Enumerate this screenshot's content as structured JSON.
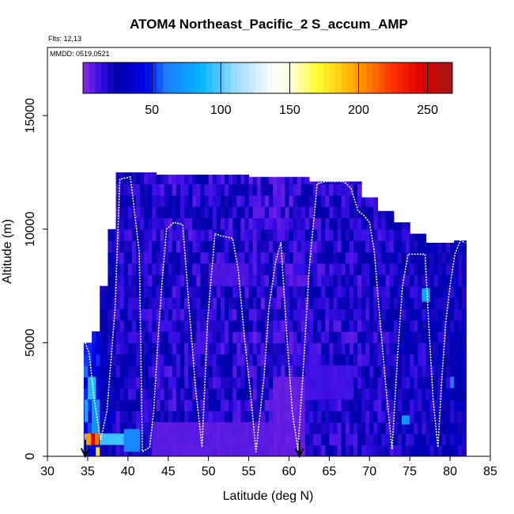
{
  "chart_data": {
    "type": "heatmap",
    "title": "ATOM4 Northeast_Pacific_2 S_accum_AMP",
    "subtitle_flights": "Flts: 12,13",
    "subtitle_dates": "MMDD: 0519,0521",
    "xlabel": "Latitude (deg N)",
    "ylabel": "Altitude (m)",
    "xlim": [
      30,
      85
    ],
    "ylim": [
      0,
      18000
    ],
    "x_ticks": [
      "30",
      "35",
      "40",
      "45",
      "50",
      "55",
      "60",
      "65",
      "70",
      "75",
      "80",
      "85"
    ],
    "y_ticks": [
      "0",
      "5000",
      "10000",
      "15000"
    ],
    "colorbar": {
      "range": [
        0,
        268
      ],
      "tick_labels": [
        "50",
        "100",
        "150",
        "200",
        "250"
      ],
      "tick_values": [
        50,
        100,
        150,
        200,
        250
      ],
      "stops": [
        {
          "value": 0,
          "color": "#8a2be2"
        },
        {
          "value": 12,
          "color": "#3a0ee8"
        },
        {
          "value": 25,
          "color": "#0000a8"
        },
        {
          "value": 45,
          "color": "#0000e8"
        },
        {
          "value": 60,
          "color": "#1e7bff"
        },
        {
          "value": 85,
          "color": "#00b4ff"
        },
        {
          "value": 110,
          "color": "#9ad9ff"
        },
        {
          "value": 135,
          "color": "#f5fbff"
        },
        {
          "value": 150,
          "color": "#fffde0"
        },
        {
          "value": 170,
          "color": "#ffff30"
        },
        {
          "value": 195,
          "color": "#ffb000"
        },
        {
          "value": 225,
          "color": "#ff3000"
        },
        {
          "value": 245,
          "color": "#e00000"
        },
        {
          "value": 268,
          "color": "#a01818"
        }
      ]
    },
    "curtain_columns": [
      {
        "lat": [
          34.5,
          35.5
        ],
        "top": 5000,
        "base_value": 50
      },
      {
        "lat": [
          35.5,
          36.5
        ],
        "top": 5500,
        "base_value": 45
      },
      {
        "lat": [
          36.5,
          37.5
        ],
        "top": 7500,
        "base_value": 30
      },
      {
        "lat": [
          37.5,
          38.5
        ],
        "top": 10000,
        "base_value": 25
      },
      {
        "lat": [
          38.5,
          43.5
        ],
        "top": 12500,
        "base_value": 20
      },
      {
        "lat": [
          43.5,
          55
        ],
        "top": 12400,
        "base_value": 18
      },
      {
        "lat": [
          55,
          62.5
        ],
        "top": 12300,
        "base_value": 16
      },
      {
        "lat": [
          62.5,
          69
        ],
        "top": 12100,
        "base_value": 18
      },
      {
        "lat": [
          69,
          71
        ],
        "top": 11400,
        "base_value": 20
      },
      {
        "lat": [
          71,
          73
        ],
        "top": 10800,
        "base_value": 20
      },
      {
        "lat": [
          73,
          75
        ],
        "top": 10300,
        "base_value": 22
      },
      {
        "lat": [
          75,
          77
        ],
        "top": 9800,
        "base_value": 22
      },
      {
        "lat": [
          77,
          80.5
        ],
        "top": 9400,
        "base_value": 24
      },
      {
        "lat": [
          80.5,
          82
        ],
        "top": 9500,
        "base_value": 26
      }
    ],
    "highlight_cells": [
      {
        "lat": [
          34.6,
          35.0
        ],
        "alt": [
          1500,
          2500
        ],
        "value": 85
      },
      {
        "lat": [
          35.0,
          36.0
        ],
        "alt": [
          2500,
          3500
        ],
        "value": 90
      },
      {
        "lat": [
          35.5,
          36.5
        ],
        "alt": [
          1000,
          2500
        ],
        "value": 70
      },
      {
        "lat": [
          34.6,
          35.4
        ],
        "alt": [
          500,
          1000
        ],
        "value": 200
      },
      {
        "lat": [
          35.4,
          35.9
        ],
        "alt": [
          500,
          1000
        ],
        "value": 245
      },
      {
        "lat": [
          35.9,
          36.4
        ],
        "alt": [
          500,
          1000
        ],
        "value": 210
      },
      {
        "lat": [
          36.0,
          36.5
        ],
        "alt": [
          0,
          400
        ],
        "value": 180
      },
      {
        "lat": [
          36.5,
          39.5
        ],
        "alt": [
          500,
          1000
        ],
        "value": 95
      },
      {
        "lat": [
          39.5,
          41.5
        ],
        "alt": [
          200,
          1200
        ],
        "value": 65
      },
      {
        "lat": [
          76.5,
          77.5
        ],
        "alt": [
          6800,
          7400
        ],
        "value": 80
      },
      {
        "lat": [
          74.0,
          75.0
        ],
        "alt": [
          1400,
          1800
        ],
        "value": 70
      },
      {
        "lat": [
          80.0,
          80.5
        ],
        "alt": [
          3000,
          3500
        ],
        "value": 60
      }
    ],
    "light_cells": [
      {
        "lat": [
          43.0,
          58.0
        ],
        "alt": [
          0,
          1500
        ],
        "value": 6
      },
      {
        "lat": [
          58.0,
          62.0
        ],
        "alt": [
          0,
          3500
        ],
        "value": 4
      },
      {
        "lat": [
          50.0,
          55.0
        ],
        "alt": [
          7500,
          8500
        ],
        "value": 8
      },
      {
        "lat": [
          62.0,
          68.0
        ],
        "alt": [
          2500,
          4000
        ],
        "value": 10
      }
    ],
    "flight_track": {
      "lat": [
        34.7,
        35.2,
        35.8,
        36.6,
        37.4,
        38.4,
        39.0,
        40.3,
        40.9,
        41.4,
        41.8,
        42.7,
        43.2,
        43.8,
        44.3,
        44.8,
        45.7,
        46.8,
        47.6,
        48.4,
        49.2,
        49.9,
        50.8,
        51.6,
        53.0,
        53.7,
        54.4,
        55.3,
        55.9,
        56.9,
        57.5,
        58.3,
        59.0,
        59.6,
        60.4,
        61.1,
        61.8,
        62.5,
        63.5,
        64.6,
        66.8,
        67.7,
        68.6,
        69.3,
        70.0,
        70.6,
        71.3,
        72.1,
        72.8,
        73.5,
        74.1,
        74.8,
        75.7,
        76.9,
        77.3,
        77.9,
        78.5,
        79.0,
        79.5,
        80.0,
        80.6,
        81.3,
        81.9
      ],
      "alt": [
        5000,
        4500,
        2500,
        700,
        2000,
        6500,
        12200,
        12300,
        10500,
        9000,
        200,
        400,
        2000,
        5500,
        8000,
        10000,
        10300,
        10200,
        6500,
        3000,
        400,
        6000,
        9800,
        9700,
        9600,
        8200,
        5500,
        2500,
        200,
        3500,
        6500,
        8500,
        9400,
        6000,
        2000,
        300,
        4000,
        8200,
        12000,
        12100,
        12100,
        11800,
        10800,
        10600,
        10300,
        9000,
        6000,
        2800,
        300,
        4500,
        7500,
        8900,
        8900,
        8900,
        6200,
        2500,
        400,
        3500,
        6000,
        7500,
        8900,
        9500,
        9400
      ]
    },
    "arrows_lat": [
      34.7,
      61.3
    ]
  }
}
